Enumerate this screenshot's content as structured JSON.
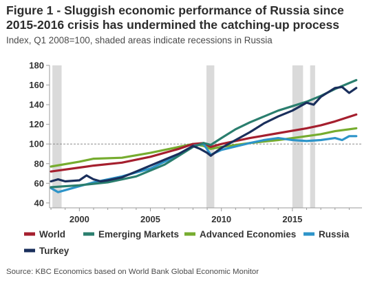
{
  "title": "Figure 1 - Sluggish economic performance of Russia since 2015-2016 crisis has undermined the catching-up process",
  "subtitle": "Index, Q1 2008=100, shaded areas indicate recessions in Russia",
  "source": "Source: KBC Economics based on World Bank Global Economic Monitor",
  "chart_data": {
    "type": "line",
    "title": "Figure 1 - Sluggish economic performance of Russia since 2015-2016 crisis has undermined the catching-up process",
    "subtitle": "Index, Q1 2008=100, shaded areas indicate recessions in Russia",
    "xlabel": "",
    "ylabel": "",
    "xlim": [
      1997.9,
      2019.9
    ],
    "ylim": [
      35,
      180
    ],
    "x_ticks": [
      2000,
      2005,
      2010,
      2015
    ],
    "y_ticks": [
      40,
      60,
      80,
      100,
      120,
      140,
      160,
      180
    ],
    "reference_line": 100,
    "recessions": [
      [
        1998.1,
        1998.75
      ],
      [
        2008.95,
        2009.5
      ],
      [
        2015.0,
        2015.75
      ],
      [
        2016.25,
        2016.6
      ]
    ],
    "grid": false,
    "legend_position": "bottom",
    "colors": {
      "World": "#a51f2e",
      "Emerging Markets": "#2a7e6e",
      "Advanced Economies": "#76ac2f",
      "Russia": "#2d94c9",
      "Turkey": "#1a2f5c",
      "recession_band": "#dadada",
      "axis": "#9a9a9a"
    },
    "series": [
      {
        "name": "World",
        "x": [
          1998,
          2000,
          2001,
          2003,
          2005,
          2007,
          2008,
          2008.75,
          2009.25,
          2010,
          2012,
          2014,
          2016,
          2017,
          2018,
          2019.5
        ],
        "values": [
          72,
          76,
          78,
          81,
          87,
          95,
          100,
          101,
          97,
          100,
          106,
          111,
          116,
          119,
          123,
          130
        ]
      },
      {
        "name": "Emerging Markets",
        "x": [
          1998,
          2000,
          2002,
          2004,
          2006,
          2008,
          2008.75,
          2009.25,
          2010,
          2011,
          2012,
          2014,
          2016,
          2017,
          2018,
          2019.5
        ],
        "values": [
          56,
          58,
          61,
          67,
          79,
          97,
          101,
          99,
          106,
          115,
          122,
          134,
          143,
          149,
          156,
          165
        ]
      },
      {
        "name": "Advanced Economies",
        "x": [
          1998,
          2000,
          2001,
          2003,
          2005,
          2007,
          2008,
          2008.75,
          2009.25,
          2010,
          2012,
          2014,
          2016,
          2017,
          2018,
          2019.5
        ],
        "values": [
          77,
          82,
          85,
          86,
          91,
          97,
          100,
          98,
          95,
          97,
          101,
          104,
          108,
          110,
          113,
          116
        ]
      },
      {
        "name": "Russia",
        "x": [
          1998,
          1998.5,
          1999,
          2000,
          2001,
          2003,
          2005,
          2007,
          2008,
          2008.75,
          2009.25,
          2010,
          2012,
          2013,
          2014,
          2015,
          2016,
          2017,
          2018,
          2018.5,
          2019,
          2019.5
        ],
        "values": [
          55,
          51,
          53,
          57,
          61,
          67,
          75,
          89,
          98,
          100,
          89,
          94,
          101,
          104,
          106,
          104,
          103,
          104,
          106,
          104,
          108,
          108
        ]
      },
      {
        "name": "Turkey",
        "x": [
          1998,
          1998.5,
          1999,
          2000,
          2000.5,
          2001,
          2001.5,
          2002,
          2003,
          2004,
          2005,
          2006,
          2007,
          2008,
          2008.5,
          2009,
          2009.25,
          2010,
          2011,
          2012,
          2013,
          2014,
          2015,
          2016,
          2016.5,
          2017,
          2018,
          2018.5,
          2019,
          2019.5
        ],
        "values": [
          62,
          64,
          62,
          63,
          68,
          64,
          62,
          63,
          66,
          72,
          78,
          84,
          90,
          98,
          95,
          91,
          88,
          96,
          104,
          112,
          121,
          128,
          134,
          142,
          140,
          148,
          157,
          158,
          152,
          157
        ]
      }
    ]
  }
}
